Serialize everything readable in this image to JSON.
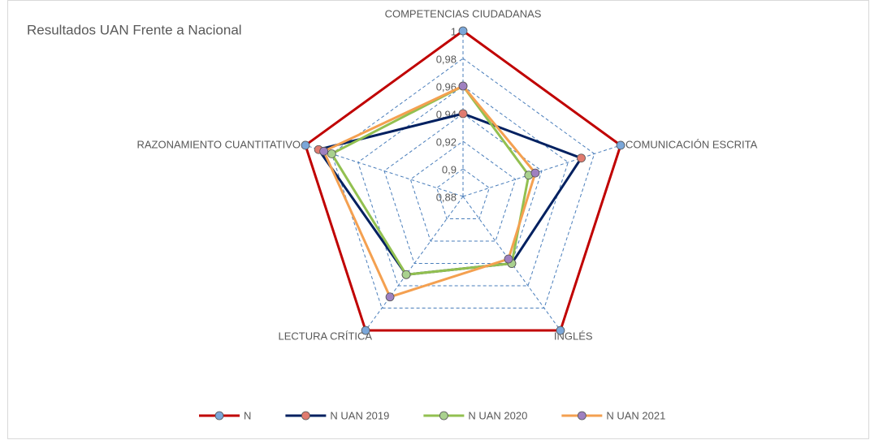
{
  "chart_data": {
    "type": "radar",
    "title": "Resultados UAN Frente a Nacional",
    "categories": [
      "COMPETENCIAS CIUDADANAS",
      "COMUNICACIÓN ESCRITA",
      "INGLÉS",
      "LECTURA CRÍTICA",
      "RAZONAMIENTO CUANTITATIVO"
    ],
    "ylim": [
      0.88,
      1
    ],
    "yticks": [
      {
        "value": 0.88,
        "label": "0,88"
      },
      {
        "value": 0.9,
        "label": "0,9"
      },
      {
        "value": 0.92,
        "label": "0,92"
      },
      {
        "value": 0.94,
        "label": "0,94"
      },
      {
        "value": 0.96,
        "label": "0,96"
      },
      {
        "value": 0.98,
        "label": "0,98"
      },
      1
    ],
    "grid": true,
    "legend": "bottom",
    "series": [
      {
        "name": "N",
        "color": "#c00000",
        "marker": "#7ba7d9",
        "values": [
          1,
          1,
          1,
          1,
          1
        ]
      },
      {
        "name": "N UAN 2019",
        "color": "#002060",
        "marker": "#e07b6f",
        "values": [
          0.94,
          0.97,
          0.94,
          0.95,
          0.99
        ]
      },
      {
        "name": "N UAN 2020",
        "color": "#92c050",
        "marker": "#a9d18e",
        "values": [
          0.96,
          0.93,
          0.94,
          0.95,
          0.98
        ]
      },
      {
        "name": "N UAN 2021",
        "color": "#f4a050",
        "marker": "#9e80c0",
        "values": [
          0.96,
          0.935,
          0.936,
          0.97,
          0.986
        ]
      }
    ]
  }
}
